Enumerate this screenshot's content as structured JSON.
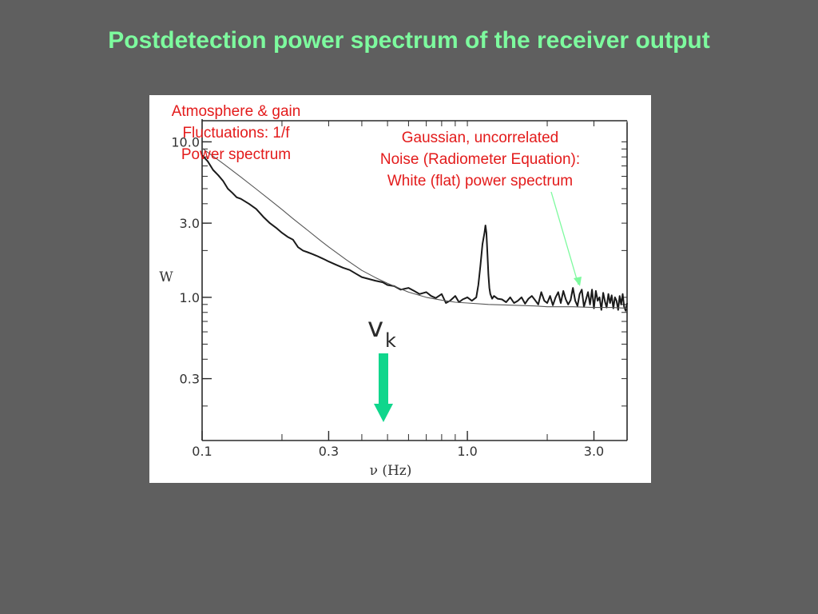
{
  "slide": {
    "title": "Postdetection power spectrum of the receiver output"
  },
  "annotations": {
    "one_over_f": "Atmosphere & gain\nFluctuations: 1/f\nPower spectrum",
    "white_noise": "Gaussian, uncorrelated\nNoise (Radiometer Equation):\nWhite (flat) power spectrum"
  },
  "marker": {
    "symbol": "v",
    "subscript": "k",
    "arrow_color": "#10d68c",
    "pointer_color": "#7dfa9e"
  },
  "colors": {
    "background": "#5f5f5f",
    "title": "#7dfa9e",
    "annotation": "#e31b1b",
    "plot_background": "#ffffff",
    "ink": "#2a2a2a"
  },
  "chart_data": {
    "type": "line",
    "x_scale": "log",
    "y_scale": "log",
    "xlabel": "ν (Hz)",
    "ylabel": "W",
    "xlim": [
      0.1,
      4.0
    ],
    "ylim": [
      0.12,
      14
    ],
    "x_ticks": [
      {
        "value": 0.1,
        "label": "0.1"
      },
      {
        "value": 0.3,
        "label": "0.3"
      },
      {
        "value": 1.0,
        "label": "1.0"
      },
      {
        "value": 3.0,
        "label": "3.0"
      }
    ],
    "y_ticks": [
      {
        "value": 10.0,
        "label": "10.0"
      },
      {
        "value": 3.0,
        "label": "3.0"
      },
      {
        "value": 1.0,
        "label": "1.0"
      },
      {
        "value": 0.3,
        "label": "0.3"
      }
    ],
    "series": [
      {
        "kind": "measured",
        "x": [
          0.1,
          0.105,
          0.11,
          0.115,
          0.12,
          0.125,
          0.13,
          0.135,
          0.14,
          0.15,
          0.16,
          0.17,
          0.18,
          0.19,
          0.2,
          0.21,
          0.22,
          0.23,
          0.24,
          0.25,
          0.26,
          0.27,
          0.28,
          0.29,
          0.3,
          0.32,
          0.34,
          0.36,
          0.38,
          0.4,
          0.42,
          0.45,
          0.48,
          0.5,
          0.53,
          0.56,
          0.6,
          0.63,
          0.66,
          0.7,
          0.73,
          0.76,
          0.8,
          0.83,
          0.86,
          0.9,
          0.93,
          0.96,
          1.0,
          1.04,
          1.08,
          1.1,
          1.12,
          1.14,
          1.16,
          1.17,
          1.18,
          1.19,
          1.2,
          1.21,
          1.22,
          1.24,
          1.26,
          1.3,
          1.35,
          1.4,
          1.45,
          1.5,
          1.55,
          1.6,
          1.65,
          1.7,
          1.75,
          1.8,
          1.85,
          1.9,
          1.95,
          2.0,
          2.05,
          2.1,
          2.15,
          2.2,
          2.25,
          2.3,
          2.35,
          2.4,
          2.45,
          2.5,
          2.55,
          2.6,
          2.65,
          2.7,
          2.75,
          2.8,
          2.85,
          2.9,
          2.95,
          3.0,
          3.05,
          3.1,
          3.15,
          3.2,
          3.25,
          3.3,
          3.35,
          3.4,
          3.45,
          3.5,
          3.55,
          3.6,
          3.65,
          3.7,
          3.75,
          3.8,
          3.85,
          3.9,
          3.95,
          4.0
        ],
        "y": [
          8.2,
          7.5,
          6.6,
          6.1,
          5.6,
          5.0,
          4.7,
          4.4,
          4.3,
          4.0,
          3.7,
          3.3,
          3.0,
          2.8,
          2.6,
          2.45,
          2.35,
          2.1,
          2.0,
          1.95,
          1.9,
          1.85,
          1.8,
          1.75,
          1.7,
          1.62,
          1.55,
          1.5,
          1.42,
          1.35,
          1.32,
          1.28,
          1.25,
          1.2,
          1.18,
          1.12,
          1.15,
          1.1,
          1.05,
          1.08,
          1.02,
          0.99,
          1.05,
          0.92,
          0.95,
          1.02,
          0.93,
          0.97,
          1.0,
          0.95,
          1.0,
          1.2,
          1.6,
          2.2,
          2.6,
          2.9,
          2.6,
          1.9,
          1.4,
          1.15,
          1.05,
          0.98,
          1.02,
          0.98,
          0.97,
          0.93,
          1.0,
          0.92,
          0.95,
          1.0,
          0.91,
          0.98,
          1.02,
          0.96,
          0.9,
          1.08,
          0.95,
          0.92,
          1.02,
          0.89,
          1.0,
          1.08,
          0.92,
          1.1,
          0.97,
          0.9,
          0.96,
          1.15,
          0.95,
          0.88,
          1.05,
          1.12,
          0.87,
          0.97,
          1.08,
          0.9,
          1.12,
          0.85,
          1.1,
          0.95,
          1.0,
          0.83,
          1.07,
          0.94,
          0.86,
          1.05,
          0.92,
          1.03,
          0.85,
          1.0,
          0.95,
          0.83,
          1.02,
          0.9,
          1.05,
          0.87,
          0.82,
          0.92
        ]
      },
      {
        "kind": "model_fit",
        "x": [
          0.1,
          0.12,
          0.14,
          0.16,
          0.18,
          0.2,
          0.22,
          0.25,
          0.28,
          0.3,
          0.35,
          0.4,
          0.45,
          0.5,
          0.6,
          0.7,
          0.8,
          0.9,
          1.0,
          1.2,
          1.5,
          1.8,
          2.0,
          2.5,
          3.0,
          3.5,
          4.0
        ],
        "y": [
          9.1,
          7.25,
          5.94,
          4.97,
          4.24,
          3.67,
          3.21,
          2.7,
          2.31,
          2.11,
          1.74,
          1.49,
          1.34,
          1.23,
          1.08,
          1.0,
          0.96,
          0.93,
          0.92,
          0.9,
          0.89,
          0.88,
          0.87,
          0.87,
          0.86,
          0.86,
          0.85
        ]
      }
    ]
  }
}
